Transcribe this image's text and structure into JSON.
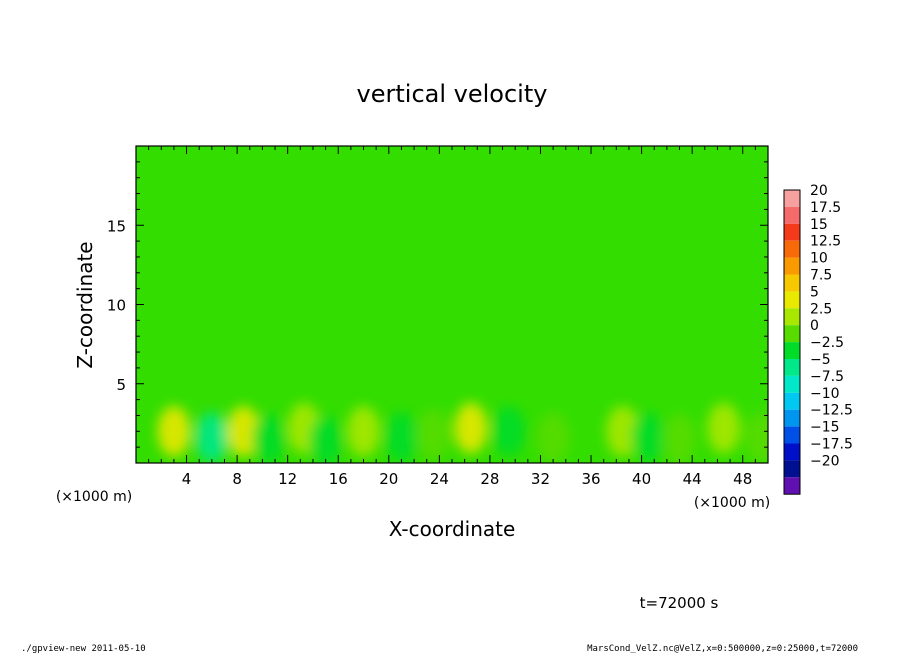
{
  "chart_data": {
    "type": "heatmap",
    "title": "vertical velocity",
    "xlabel": "X-coordinate",
    "ylabel": "Z-coordinate",
    "x_unit_left": "(×1000 m)",
    "x_unit_right": "(×1000 m)",
    "xlim": [
      0,
      50
    ],
    "ylim": [
      0,
      20
    ],
    "x_ticks": [
      4,
      8,
      12,
      16,
      20,
      24,
      28,
      32,
      36,
      40,
      44,
      48
    ],
    "y_ticks": [
      5,
      10,
      15
    ],
    "colorbar_levels": [
      "20",
      "17.5",
      "15",
      "12.5",
      "10",
      "7.5",
      "5",
      "2.5",
      "0",
      "−2.5",
      "−5",
      "−7.5",
      "−10",
      "−12.5",
      "−15",
      "−17.5",
      "−20"
    ],
    "colorbar_colors": [
      "#f7a0a0",
      "#f56b6b",
      "#f53a1c",
      "#f66a08",
      "#f99a00",
      "#f5c800",
      "#e8e800",
      "#a8e800",
      "#58dc00",
      "#00dc28",
      "#00e88a",
      "#00e8c8",
      "#00c8f0",
      "#0096f0",
      "#0050e8",
      "#0010c8",
      "#001090",
      "#6010b0"
    ],
    "background_color": "#33dd00",
    "features": [
      {
        "x": 3.0,
        "z": 2.0,
        "value": 3.5
      },
      {
        "x": 6.0,
        "z": 1.6,
        "value": -5
      },
      {
        "x": 8.5,
        "z": 2.0,
        "value": 4.0
      },
      {
        "x": 10.5,
        "z": 1.5,
        "value": -4
      },
      {
        "x": 13.3,
        "z": 2.2,
        "value": 2.0
      },
      {
        "x": 15.0,
        "z": 1.4,
        "value": -2.5
      },
      {
        "x": 18.0,
        "z": 2.0,
        "value": 1.5
      },
      {
        "x": 21.0,
        "z": 1.6,
        "value": -2.5
      },
      {
        "x": 23.5,
        "z": 1.8,
        "value": -2.0
      },
      {
        "x": 26.5,
        "z": 2.2,
        "value": 4.5
      },
      {
        "x": 29.5,
        "z": 2.0,
        "value": -3.5
      },
      {
        "x": 33.0,
        "z": 1.6,
        "value": -2.0
      },
      {
        "x": 38.5,
        "z": 2.0,
        "value": 2.0
      },
      {
        "x": 40.5,
        "z": 1.6,
        "value": -3.0
      },
      {
        "x": 43.0,
        "z": 1.5,
        "value": -2.0
      },
      {
        "x": 46.5,
        "z": 2.2,
        "value": 2.5
      },
      {
        "x": 49.5,
        "z": 1.6,
        "value": -2.0
      }
    ]
  },
  "time_label": "t=72000 s",
  "footer_left": "./gpview-new  2011-05-10",
  "footer_right": "MarsCond_VelZ.nc@VelZ,x=0:500000,z=0:25000,t=72000"
}
